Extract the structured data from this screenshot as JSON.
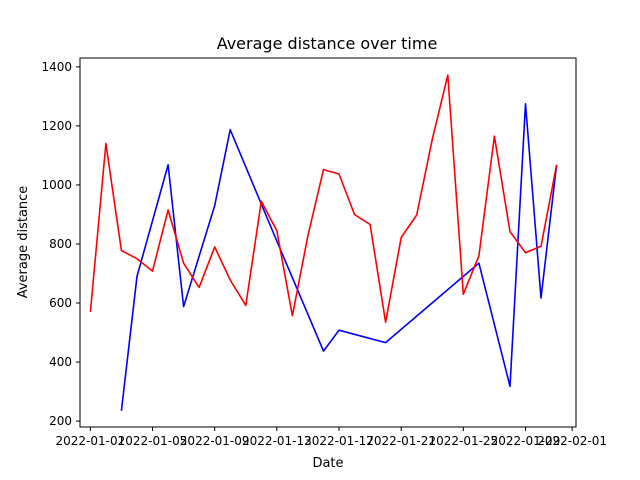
{
  "chart_data": {
    "type": "line",
    "title": "Average distance over time",
    "xlabel": "Date",
    "ylabel": "Average distance",
    "x_ticks": [
      "2022-01-01",
      "2022-01-05",
      "2022-01-09",
      "2022-01-13",
      "2022-01-17",
      "2022-01-21",
      "2022-01-25",
      "2022-01-29",
      "2022-02-01"
    ],
    "y_ticks": [
      200,
      400,
      600,
      800,
      1000,
      1200,
      1400
    ],
    "xlim": [
      "2021-12-31T08:00",
      "2022-02-01T06:00"
    ],
    "ylim": [
      180,
      1430
    ],
    "grid": false,
    "series": [
      {
        "color": "#0000ff",
        "points": [
          {
            "x": "2022-01-03",
            "y": 235
          },
          {
            "x": "2022-01-04",
            "y": 690
          },
          {
            "x": "2022-01-06",
            "y": 1068
          },
          {
            "x": "2022-01-07",
            "y": 588
          },
          {
            "x": "2022-01-09",
            "y": 930
          },
          {
            "x": "2022-01-10",
            "y": 1187
          },
          {
            "x": "2022-01-13",
            "y": 810
          },
          {
            "x": "2022-01-16",
            "y": 437
          },
          {
            "x": "2022-01-17",
            "y": 508
          },
          {
            "x": "2022-01-20",
            "y": 466
          },
          {
            "x": "2022-01-25",
            "y": 690
          },
          {
            "x": "2022-01-26",
            "y": 735
          },
          {
            "x": "2022-01-28",
            "y": 318
          },
          {
            "x": "2022-01-29",
            "y": 1275
          },
          {
            "x": "2022-01-30",
            "y": 617
          },
          {
            "x": "2022-01-31",
            "y": 1068
          }
        ]
      },
      {
        "color": "#ff0000",
        "points": [
          {
            "x": "2022-01-01",
            "y": 570
          },
          {
            "x": "2022-01-02",
            "y": 1140
          },
          {
            "x": "2022-01-03",
            "y": 778
          },
          {
            "x": "2022-01-04",
            "y": 750
          },
          {
            "x": "2022-01-05",
            "y": 708
          },
          {
            "x": "2022-01-06",
            "y": 915
          },
          {
            "x": "2022-01-07",
            "y": 735
          },
          {
            "x": "2022-01-08",
            "y": 653
          },
          {
            "x": "2022-01-09",
            "y": 790
          },
          {
            "x": "2022-01-10",
            "y": 678
          },
          {
            "x": "2022-01-11",
            "y": 592
          },
          {
            "x": "2022-01-12",
            "y": 945
          },
          {
            "x": "2022-01-13",
            "y": 845
          },
          {
            "x": "2022-01-14",
            "y": 557
          },
          {
            "x": "2022-01-15",
            "y": 828
          },
          {
            "x": "2022-01-16",
            "y": 1052
          },
          {
            "x": "2022-01-17",
            "y": 1037
          },
          {
            "x": "2022-01-18",
            "y": 900
          },
          {
            "x": "2022-01-19",
            "y": 866
          },
          {
            "x": "2022-01-20",
            "y": 535
          },
          {
            "x": "2022-01-21",
            "y": 822
          },
          {
            "x": "2022-01-22",
            "y": 898
          },
          {
            "x": "2022-01-23",
            "y": 1155
          },
          {
            "x": "2022-01-24",
            "y": 1372
          },
          {
            "x": "2022-01-25",
            "y": 630
          },
          {
            "x": "2022-01-26",
            "y": 760
          },
          {
            "x": "2022-01-27",
            "y": 1165
          },
          {
            "x": "2022-01-28",
            "y": 842
          },
          {
            "x": "2022-01-29",
            "y": 770
          },
          {
            "x": "2022-01-30",
            "y": 792
          },
          {
            "x": "2022-01-31",
            "y": 1068
          }
        ]
      }
    ]
  }
}
